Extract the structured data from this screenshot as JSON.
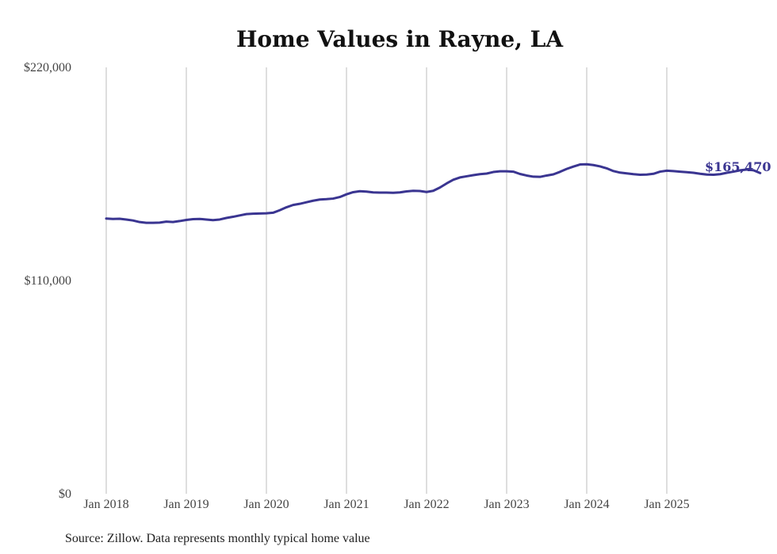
{
  "chart_data": {
    "type": "line",
    "title": "Home Values in Rayne, LA",
    "xlabel": "",
    "ylabel": "",
    "ylim": [
      0,
      220000
    ],
    "y_ticks": [
      {
        "value": 0,
        "label": "$0"
      },
      {
        "value": 110000,
        "label": "$110,000"
      },
      {
        "value": 220000,
        "label": "$220,000"
      }
    ],
    "x_ticks": [
      "Jan 2018",
      "Jan 2019",
      "Jan 2020",
      "Jan 2021",
      "Jan 2022",
      "Jan 2023",
      "Jan 2024",
      "Jan 2025"
    ],
    "x_start": "Jan 2018",
    "grid": "vertical",
    "line_color": "#3a3591",
    "end_label": "$165,470",
    "source": "Source: Zillow. Data represents monthly typical home value",
    "series": [
      {
        "values": [
          142000,
          141800,
          141900,
          141500,
          141000,
          140200,
          139800,
          139800,
          139900,
          140400,
          140200,
          140700,
          141300,
          141700,
          141800,
          141500,
          141200,
          141500,
          142300,
          142900,
          143600,
          144300,
          144500,
          144600,
          144700,
          145000,
          146300,
          147800,
          149000,
          149600,
          150400,
          151200,
          151800,
          152000,
          152300,
          153100,
          154500,
          155600,
          156100,
          155900,
          155500,
          155400,
          155400,
          155300,
          155500,
          156000,
          156300,
          156200,
          155700,
          156300,
          158000,
          160100,
          162000,
          163200,
          163800,
          164400,
          164900,
          165200,
          166000,
          166400,
          166400,
          166200,
          165000,
          164200,
          163600,
          163500,
          164200,
          164800,
          166100,
          167600,
          168800,
          169900,
          170000,
          169600,
          168900,
          167900,
          166500,
          165700,
          165300,
          164900,
          164600,
          164700,
          165100,
          166200,
          166700,
          166500,
          166200,
          165900,
          165600,
          165100,
          164700,
          164600,
          164900,
          165600,
          166200,
          166900,
          167300,
          166900,
          165470
        ]
      }
    ]
  }
}
